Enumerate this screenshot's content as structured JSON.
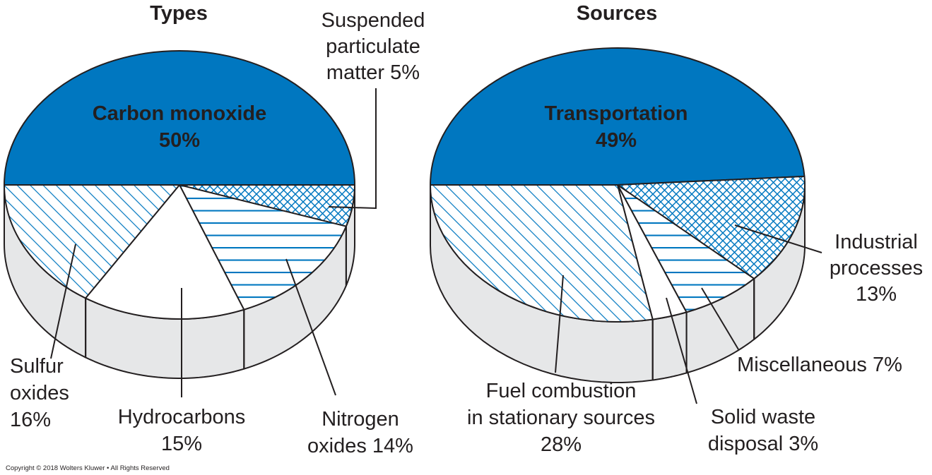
{
  "copyright": "Copyright © 2018 Wolters Kluwer • All Rights Reserved",
  "colors": {
    "blue": "#0077c0",
    "side": "#e6e7e8",
    "ink": "#231f20",
    "white": "#ffffff"
  },
  "chart_data": [
    {
      "type": "pie",
      "title": "Types",
      "slices": [
        {
          "label": [
            "Carbon monoxide",
            "50%"
          ],
          "value": 50,
          "fill": "solid-blue"
        },
        {
          "label": [
            "Suspended",
            "particulate",
            "matter 5%"
          ],
          "value": 5,
          "fill": "crosshatch"
        },
        {
          "label": [
            "Nitrogen",
            "oxides 14%"
          ],
          "value": 14,
          "fill": "horizontal-lines"
        },
        {
          "label": [
            "Hydrocarbons",
            "15%"
          ],
          "value": 15,
          "fill": "white"
        },
        {
          "label": [
            "Sulfur",
            "oxides",
            "16%"
          ],
          "value": 16,
          "fill": "diagonal-lines"
        }
      ]
    },
    {
      "type": "pie",
      "title": "Sources",
      "slices": [
        {
          "label": [
            "Transportation",
            "49%"
          ],
          "value": 49,
          "fill": "solid-blue"
        },
        {
          "label": [
            "Industrial",
            "processes",
            "13%"
          ],
          "value": 13,
          "fill": "crosshatch"
        },
        {
          "label": [
            "Miscellaneous 7%"
          ],
          "value": 7,
          "fill": "horizontal-lines"
        },
        {
          "label": [
            "Solid waste",
            "disposal 3%"
          ],
          "value": 3,
          "fill": "white"
        },
        {
          "label": [
            "Fuel combustion",
            "in stationary sources",
            "28%"
          ],
          "value": 28,
          "fill": "diagonal-lines"
        }
      ]
    }
  ]
}
